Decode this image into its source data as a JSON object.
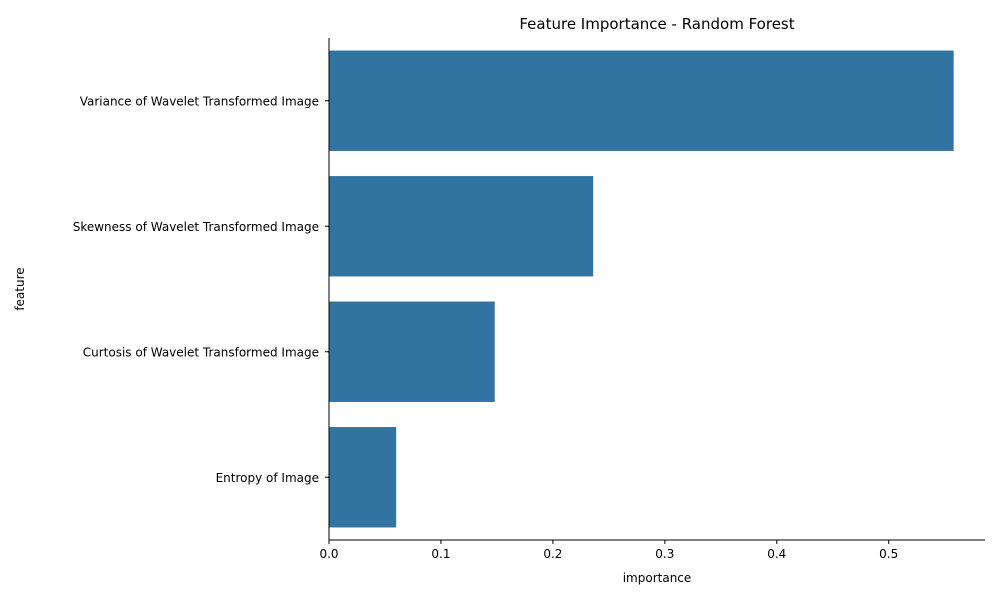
{
  "chart_data": {
    "type": "bar",
    "orientation": "horizontal",
    "title": "Feature Importance - Random Forest",
    "xlabel": "importance",
    "ylabel": "feature",
    "categories": [
      "Variance of Wavelet Transformed Image",
      "Skewness of Wavelet Transformed Image",
      "Curtosis of Wavelet Transformed Image",
      "Entropy of Image"
    ],
    "values": [
      0.558,
      0.236,
      0.148,
      0.06
    ],
    "xlim": [
      0,
      0.586
    ],
    "xticks": [
      0.0,
      0.1,
      0.2,
      0.3,
      0.4,
      0.5
    ],
    "xtick_labels": [
      "0.0",
      "0.1",
      "0.2",
      "0.3",
      "0.4",
      "0.5"
    ],
    "grid": false,
    "bar_color": "#3274a1"
  }
}
